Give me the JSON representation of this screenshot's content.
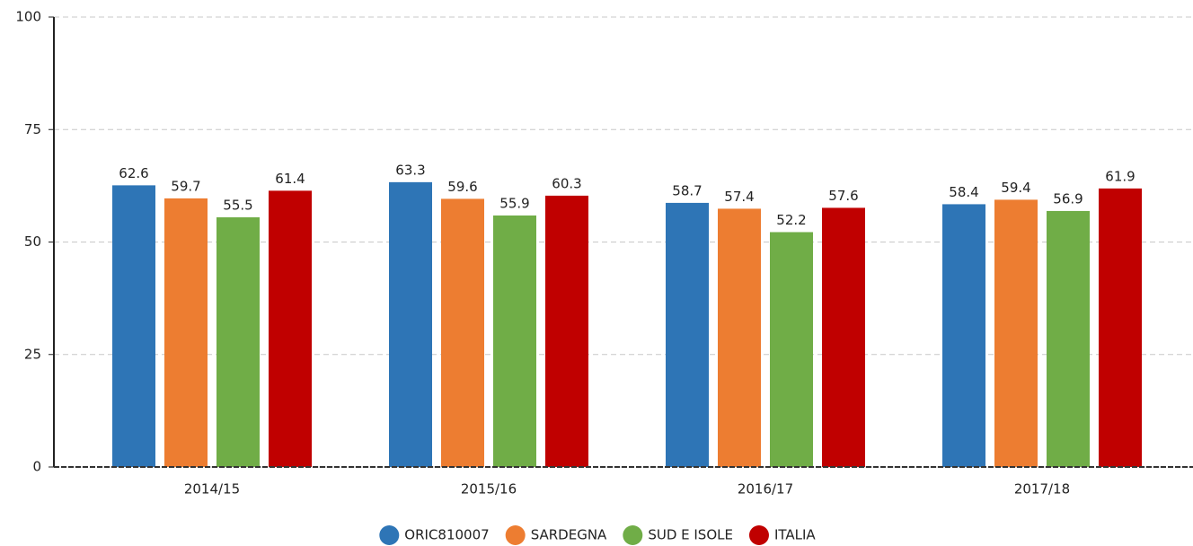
{
  "chart_data": {
    "type": "bar",
    "categories": [
      "2014/15",
      "2015/16",
      "2016/17",
      "2017/18"
    ],
    "series": [
      {
        "name": "ORIC810007",
        "color": "#2e75b6",
        "values": [
          62.6,
          63.3,
          58.7,
          58.4
        ]
      },
      {
        "name": "SARDEGNA",
        "color": "#ed7d31",
        "values": [
          59.7,
          59.6,
          57.4,
          59.4
        ]
      },
      {
        "name": "SUD E ISOLE",
        "color": "#70ad47",
        "values": [
          55.5,
          55.9,
          52.2,
          56.9
        ]
      },
      {
        "name": "ITALIA",
        "color": "#c00000",
        "values": [
          61.4,
          60.3,
          57.6,
          61.9
        ]
      }
    ],
    "ylim": [
      0,
      100
    ],
    "yticks": [
      0,
      25,
      50,
      75,
      100
    ],
    "grid": true,
    "legend": "bottom"
  }
}
